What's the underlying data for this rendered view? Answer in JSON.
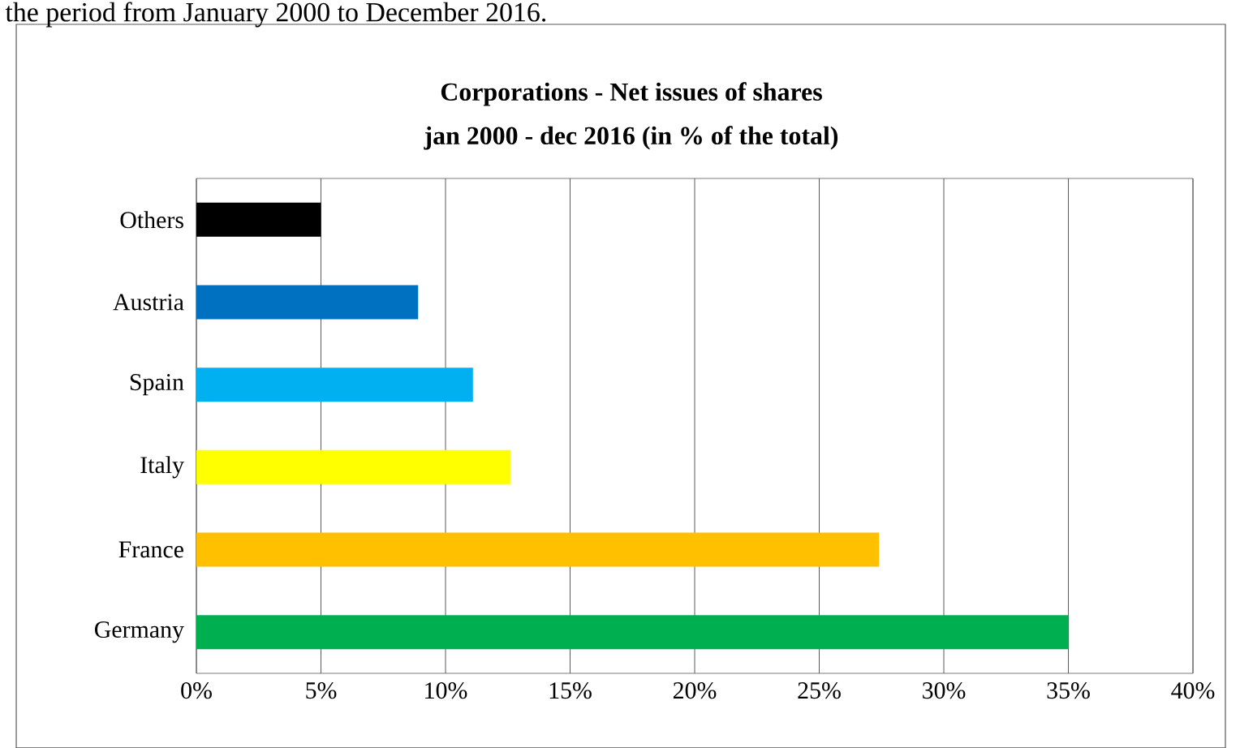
{
  "chart_data": {
    "type": "bar",
    "orientation": "horizontal",
    "title": "Corporations  - Net issues of shares",
    "subtitle": "jan 2000 - dec 2016 (in % of the total)",
    "annotations": [
      "the period from January 2000 to December 2016."
    ],
    "categories": [
      "Others",
      "Austria",
      "Spain",
      "Italy",
      "France",
      "Germany"
    ],
    "values": [
      5,
      8.9,
      11.1,
      12.6,
      27.4,
      35
    ],
    "colors": [
      "#000000",
      "#0070c0",
      "#00b0f0",
      "#ffff00",
      "#ffc000",
      "#00b050"
    ],
    "xlim": [
      0,
      40
    ],
    "xticks": [
      {
        "value": 0,
        "label": "0%"
      },
      {
        "value": 5,
        "label": "5%"
      },
      {
        "value": 10,
        "label": "10%"
      },
      {
        "value": 15,
        "label": "15%"
      },
      {
        "value": 20,
        "label": "20%"
      },
      {
        "value": 25,
        "label": "25%"
      },
      {
        "value": 30,
        "label": "30%"
      },
      {
        "value": 35,
        "label": "35%"
      },
      {
        "value": 40,
        "label": "40%"
      }
    ],
    "grid": "x"
  }
}
